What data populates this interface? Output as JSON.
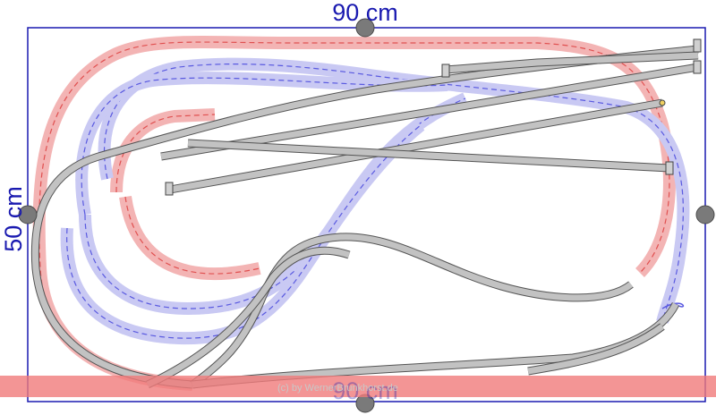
{
  "board": {
    "width_label": "90 cm",
    "height_label": "50 cm",
    "bottom_label": "90 cm"
  },
  "footer": {
    "copyright": "(c) by WernerBrunkhorst.de"
  },
  "colors": {
    "border": "#1a1ab0",
    "upper_level_track": "#e05050",
    "lower_level_track": "#5a5ae0",
    "main_track": "#a8a8a8",
    "anchor": "#7a7a7a",
    "bottom_band": "#f07a7a"
  }
}
